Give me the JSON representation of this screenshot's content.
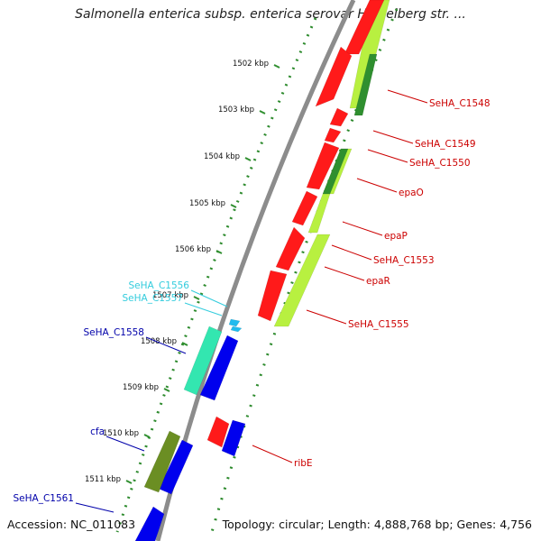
{
  "title": "Salmonella enterica subsp. enterica serovar Heidelberg str. ...",
  "accession": "Accession: NC_011083",
  "summary": "Topology: circular; Length: 4,888,768 bp; Genes: 4,756",
  "colors": {
    "backbone": "#8c8c8c",
    "tick_dots": "#2e8b2e",
    "forward_red": "#ff1a1a",
    "reverse_blue": "#0000ee",
    "light_green": "#b8f040",
    "dark_green": "#2f8f2f",
    "olive": "#6b8e23",
    "teal": "#33e6b0",
    "cyan_label": "#33ccdd",
    "red_label": "#cc0000",
    "blue_label": "#0000aa"
  },
  "ticks": [
    {
      "label": "1502 kbp"
    },
    {
      "label": "1503 kbp"
    },
    {
      "label": "1504 kbp"
    },
    {
      "label": "1505 kbp"
    },
    {
      "label": "1506 kbp"
    },
    {
      "label": "1507 kbp"
    },
    {
      "label": "1508 kbp"
    },
    {
      "label": "1509 kbp"
    },
    {
      "label": "1510 kbp"
    },
    {
      "label": "1511 kbp"
    }
  ],
  "genes": [
    {
      "name": "SeHA_C1548",
      "color": "#cc0000"
    },
    {
      "name": "SeHA_C1549",
      "color": "#cc0000"
    },
    {
      "name": "SeHA_C1550",
      "color": "#cc0000"
    },
    {
      "name": "epaO",
      "color": "#cc0000"
    },
    {
      "name": "epaP",
      "color": "#cc0000"
    },
    {
      "name": "SeHA_C1553",
      "color": "#cc0000"
    },
    {
      "name": "epaR",
      "color": "#cc0000"
    },
    {
      "name": "SeHA_C1555",
      "color": "#cc0000"
    },
    {
      "name": "ribE",
      "color": "#cc0000"
    },
    {
      "name": "SeHA_C1556",
      "color": "#33ccdd"
    },
    {
      "name": "SeHA_C1557",
      "color": "#33ccdd"
    },
    {
      "name": "SeHA_C1558",
      "color": "#0000aa"
    },
    {
      "name": "cfa",
      "color": "#0000aa"
    },
    {
      "name": "SeHA_C1561",
      "color": "#0000aa"
    }
  ]
}
